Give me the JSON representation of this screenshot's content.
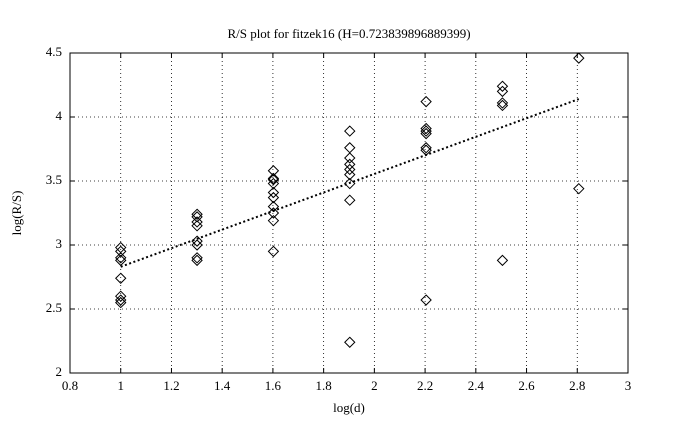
{
  "chart_data": {
    "type": "scatter",
    "title": "R/S plot for fitzek16 (H=0.723839896889399)",
    "x_label": "log(d)",
    "y_label": "log(R/S)",
    "x": [
      1,
      1,
      1,
      1,
      1,
      1,
      1,
      1,
      1.301,
      1.301,
      1.301,
      1.301,
      1.301,
      1.301,
      1.301,
      1.301,
      1.602,
      1.602,
      1.602,
      1.602,
      1.602,
      1.602,
      1.602,
      1.602,
      1.602,
      1.602,
      1.903,
      1.903,
      1.903,
      1.903,
      1.903,
      1.903,
      1.903,
      1.903,
      1.903,
      2.204,
      2.204,
      2.204,
      2.204,
      2.204,
      2.204,
      2.204,
      2.505,
      2.505,
      2.505,
      2.505,
      2.505,
      2.806,
      2.806
    ],
    "values": [
      2.98,
      2.95,
      2.9,
      2.88,
      2.74,
      2.6,
      2.57,
      2.55,
      3.24,
      3.22,
      3.18,
      3.15,
      3.03,
      3.0,
      2.9,
      2.88,
      3.58,
      3.52,
      3.51,
      3.48,
      3.41,
      3.37,
      3.3,
      3.25,
      3.19,
      2.95,
      3.89,
      3.76,
      3.68,
      3.63,
      3.59,
      3.55,
      3.48,
      3.35,
      2.24,
      4.12,
      3.91,
      3.89,
      3.87,
      3.76,
      3.74,
      2.57,
      4.24,
      4.2,
      4.11,
      4.09,
      2.88,
      4.46,
      3.44
    ],
    "color": "#000000",
    "fit": {
      "x": [
        1,
        2.806
      ],
      "values": [
        2.83,
        4.14
      ]
    },
    "xlim": [
      0.8,
      3
    ],
    "xticks": [
      0.8,
      1,
      1.2,
      1.4,
      1.6,
      1.8,
      2,
      2.2,
      2.4,
      2.6,
      2.8,
      3
    ],
    "ylim": [
      2,
      4.5
    ],
    "yticks": [
      2,
      2.5,
      3,
      3.5,
      4,
      4.5
    ],
    "grid": true
  }
}
